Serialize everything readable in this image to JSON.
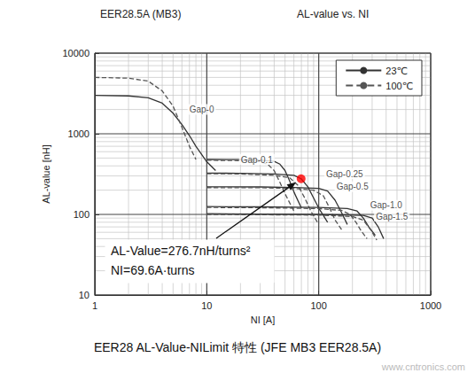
{
  "chart_data": {
    "type": "line",
    "title": "EER28.5A (MB3)",
    "subtitle": "AL-value vs. NI",
    "caption": "EER28 AL-Value-NILimit 特性 (JFE MB3 EER28.5A)",
    "watermark": "www.cntronics.com",
    "x_label": "NI [A]",
    "y_label": "AL-value [nH]",
    "log": true,
    "grid": true,
    "legend": "top-right",
    "xlim": [
      1,
      1000
    ],
    "xticks": [
      1,
      10,
      100,
      1000
    ],
    "ylim": [
      10,
      10000
    ],
    "yticks": [
      10,
      100,
      1000,
      10000
    ],
    "series": [
      {
        "name": "23℃",
        "line_style": "solid",
        "color": "#333333",
        "x": [
          1,
          2,
          3,
          4,
          5,
          6,
          7,
          8,
          10,
          12
        ],
        "values": [
          3000,
          2950,
          2800,
          2400,
          1800,
          1300,
          950,
          700,
          450,
          350
        ]
      },
      {
        "name": "100℃",
        "line_style": "dashed",
        "color": "#555555",
        "x": [
          1,
          2,
          3,
          4,
          5,
          6,
          7,
          8
        ],
        "values": [
          5000,
          4900,
          4500,
          3400,
          2200,
          1200,
          700,
          480
        ]
      },
      {
        "name": "23℃",
        "line_style": "solid",
        "color": "#333333",
        "x": [
          10,
          20,
          30,
          40,
          45,
          50,
          55,
          60,
          70
        ],
        "values": [
          480,
          478,
          472,
          455,
          420,
          350,
          260,
          190,
          120
        ]
      },
      {
        "name": "100℃",
        "line_style": "dashed",
        "color": "#555555",
        "x": [
          10,
          20,
          30,
          35,
          40,
          45,
          50,
          60
        ],
        "values": [
          470,
          465,
          450,
          420,
          350,
          250,
          180,
          110
        ]
      },
      {
        "name": "23℃",
        "line_style": "solid",
        "color": "#333333",
        "x": [
          10,
          20,
          40,
          60,
          69.6,
          80,
          90,
          100,
          120
        ],
        "values": [
          325,
          324,
          318,
          305,
          276.7,
          220,
          160,
          120,
          80
        ]
      },
      {
        "name": "100℃",
        "line_style": "dashed",
        "color": "#555555",
        "x": [
          10,
          20,
          40,
          55,
          65,
          75,
          85,
          100
        ],
        "values": [
          320,
          318,
          305,
          285,
          230,
          160,
          110,
          75
        ]
      },
      {
        "name": "23℃",
        "line_style": "solid",
        "color": "#333333",
        "x": [
          10,
          30,
          60,
          100,
          120,
          140,
          160,
          180
        ],
        "values": [
          220,
          219,
          216,
          210,
          195,
          150,
          105,
          75
        ]
      },
      {
        "name": "100℃",
        "line_style": "dashed",
        "color": "#555555",
        "x": [
          10,
          30,
          60,
          90,
          110,
          125,
          140,
          160
        ],
        "values": [
          215,
          214,
          210,
          200,
          170,
          120,
          85,
          65
        ]
      },
      {
        "name": "23℃",
        "line_style": "solid",
        "color": "#333333",
        "x": [
          10,
          30,
          100,
          180,
          220,
          250,
          280,
          320
        ],
        "values": [
          125,
          124,
          122,
          118,
          110,
          90,
          70,
          55
        ]
      },
      {
        "name": "100℃",
        "line_style": "dashed",
        "color": "#555555",
        "x": [
          10,
          30,
          100,
          160,
          190,
          215,
          240,
          270
        ],
        "values": [
          122,
          121,
          118,
          112,
          100,
          80,
          62,
          50
        ]
      },
      {
        "name": "23℃",
        "line_style": "solid",
        "color": "#333333",
        "x": [
          10,
          30,
          100,
          250,
          300,
          340,
          380
        ],
        "values": [
          102,
          101,
          100,
          97,
          90,
          70,
          50
        ]
      },
      {
        "name": "100℃",
        "line_style": "dashed",
        "color": "#555555",
        "x": [
          10,
          30,
          100,
          200,
          250,
          290,
          330
        ],
        "values": [
          100,
          99,
          98,
          94,
          85,
          65,
          48
        ]
      }
    ],
    "annotations": [
      {
        "text": "Gap-0",
        "x": 9,
        "y": 2000
      },
      {
        "text": "Gap-0.1",
        "x": 28,
        "y": 480
      },
      {
        "text": "Gap-0.25",
        "x": 170,
        "y": 320
      },
      {
        "text": "Gap-0.5",
        "x": 200,
        "y": 220
      },
      {
        "text": "Gap-1.0",
        "x": 400,
        "y": 130
      },
      {
        "text": "Gap-1.5",
        "x": 450,
        "y": 95
      }
    ],
    "callout": {
      "x": 69.6,
      "y": 276.7,
      "color": "#ff0000",
      "texts": [
        "AL-Value=276.7nH/turns²",
        "NI=69.6A·turns"
      ]
    }
  }
}
